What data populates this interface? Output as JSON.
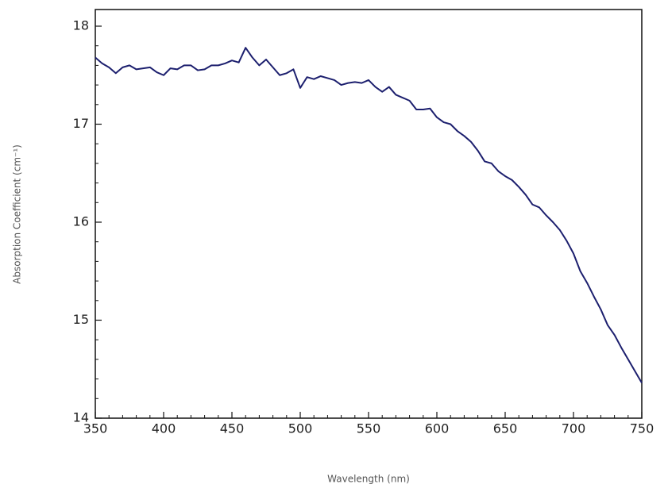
{
  "chart_data": {
    "type": "line",
    "x_label": "Wavelength (nm)",
    "y_label": "Absorption Coefficient (cm⁻¹)",
    "x": [
      350,
      355,
      360,
      365,
      370,
      375,
      380,
      385,
      390,
      395,
      400,
      405,
      410,
      415,
      420,
      425,
      430,
      435,
      440,
      445,
      450,
      455,
      460,
      465,
      470,
      475,
      480,
      485,
      490,
      495,
      500,
      505,
      510,
      515,
      520,
      525,
      530,
      535,
      540,
      545,
      550,
      555,
      560,
      565,
      570,
      575,
      580,
      585,
      590,
      595,
      600,
      605,
      610,
      615,
      620,
      625,
      630,
      635,
      640,
      645,
      650,
      655,
      660,
      665,
      670,
      675,
      680,
      685,
      690,
      695,
      700,
      705,
      710,
      715,
      720,
      725,
      730,
      735,
      740,
      745,
      750
    ],
    "series": [
      {
        "color": "#1c1f6e",
        "values": [
          17.68,
          17.62,
          17.58,
          17.52,
          17.58,
          17.6,
          17.56,
          17.57,
          17.58,
          17.53,
          17.5,
          17.57,
          17.56,
          17.6,
          17.6,
          17.55,
          17.56,
          17.6,
          17.6,
          17.62,
          17.65,
          17.63,
          17.78,
          17.68,
          17.6,
          17.66,
          17.58,
          17.5,
          17.52,
          17.56,
          17.37,
          17.48,
          17.46,
          17.49,
          17.47,
          17.45,
          17.4,
          17.42,
          17.43,
          17.42,
          17.45,
          17.38,
          17.33,
          17.38,
          17.3,
          17.27,
          17.24,
          17.15,
          17.15,
          17.16,
          17.07,
          17.02,
          17.0,
          16.93,
          16.88,
          16.82,
          16.73,
          16.62,
          16.6,
          16.52,
          16.47,
          16.43,
          16.36,
          16.28,
          16.18,
          16.15,
          16.07,
          16.0,
          15.92,
          15.81,
          15.68,
          15.5,
          15.38,
          15.24,
          15.11,
          14.95,
          14.85,
          14.72,
          14.6,
          14.48,
          14.36
        ]
      }
    ],
    "xlim": [
      350,
      750
    ],
    "xticks": [
      350,
      400,
      450,
      500,
      550,
      600,
      650,
      700,
      750
    ],
    "ylim": [
      14,
      18.17
    ],
    "yticks": [
      14,
      15,
      16,
      17,
      18
    ]
  }
}
